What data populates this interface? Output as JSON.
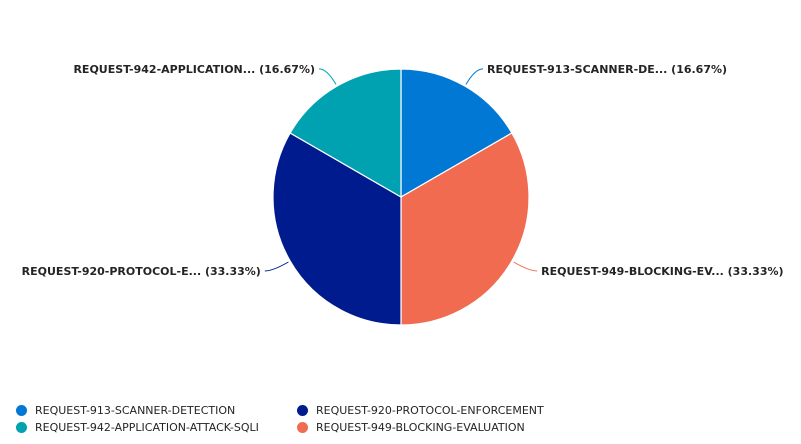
{
  "chart_data": {
    "type": "pie",
    "categories": [
      "REQUEST-913-SCANNER-DETECTION",
      "REQUEST-949-BLOCKING-EVALUATION",
      "REQUEST-920-PROTOCOL-ENFORCEMENT",
      "REQUEST-942-APPLICATION-ATTACK-SQLI"
    ],
    "values": [
      1,
      2,
      2,
      1
    ],
    "data_labels": [
      "REQUEST-913-SCANNER-DE... (16.67%)",
      "REQUEST-949-BLOCKING-EV... (33.33%)",
      "REQUEST-920-PROTOCOL-E... (33.33%)",
      "REQUEST-942-APPLICATION... (16.67%)"
    ],
    "colors": [
      "#0078D4",
      "#F06B50",
      "#001B8E",
      "#00A1B0"
    ],
    "legend_position": "bottom-left",
    "legend": [
      {
        "label": "REQUEST-913-SCANNER-DETECTION",
        "color": "#0078D4"
      },
      {
        "label": "REQUEST-920-PROTOCOL-ENFORCEMENT",
        "color": "#001B8E"
      },
      {
        "label": "REQUEST-942-APPLICATION-ATTACK-SQLI",
        "color": "#00A1B0"
      },
      {
        "label": "REQUEST-949-BLOCKING-EVALUATION",
        "color": "#F06B50"
      }
    ]
  }
}
